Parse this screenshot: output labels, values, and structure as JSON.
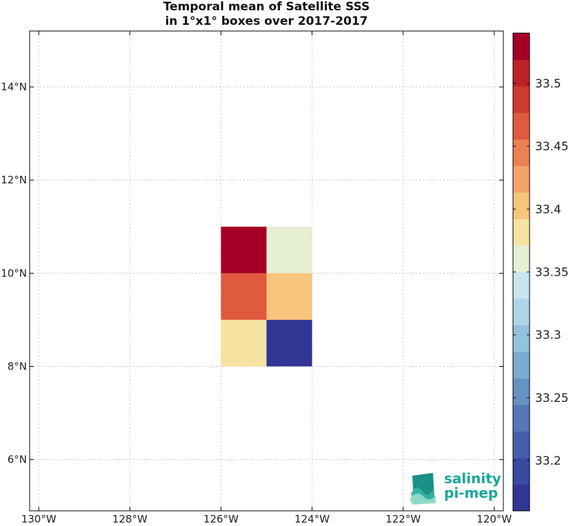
{
  "chart_data": {
    "type": "heatmap",
    "title_lines": [
      "Temporal mean of Satellite SSS",
      "in 1°x1° boxes over 2017-2017"
    ],
    "xlim": [
      -130.2,
      -119.8
    ],
    "ylim": [
      4.9,
      15.2
    ],
    "x_ticks": [
      {
        "value": -130,
        "label": "130°W"
      },
      {
        "value": -128,
        "label": "128°W"
      },
      {
        "value": -126,
        "label": "126°W"
      },
      {
        "value": -124,
        "label": "124°W"
      },
      {
        "value": -122,
        "label": "122°W"
      },
      {
        "value": -120,
        "label": "120°W"
      }
    ],
    "y_ticks": [
      {
        "value": 6,
        "label": "6°N"
      },
      {
        "value": 8,
        "label": "8°N"
      },
      {
        "value": 10,
        "label": "10°N"
      },
      {
        "value": 12,
        "label": "12°N"
      },
      {
        "value": 14,
        "label": "14°N"
      }
    ],
    "grid": true,
    "cells": [
      {
        "lon": [
          -126,
          -125
        ],
        "lat": [
          10,
          11
        ],
        "value": 33.53
      },
      {
        "lon": [
          -125,
          -124
        ],
        "lat": [
          10,
          11
        ],
        "value": 33.36
      },
      {
        "lon": [
          -126,
          -125
        ],
        "lat": [
          9,
          10
        ],
        "value": 33.47
      },
      {
        "lon": [
          -125,
          -124
        ],
        "lat": [
          9,
          10
        ],
        "value": 33.4
      },
      {
        "lon": [
          -126,
          -125
        ],
        "lat": [
          8,
          9
        ],
        "value": 33.38
      },
      {
        "lon": [
          -125,
          -124
        ],
        "lat": [
          8,
          9
        ],
        "value": 33.17
      }
    ],
    "colorbar": {
      "vmin": 33.16,
      "vmax": 33.54,
      "colors": [
        "#313695",
        "#394a9f",
        "#4560a9",
        "#5577b5",
        "#6691c3",
        "#7bacd1",
        "#92c2dd",
        "#acd5e7",
        "#c9e4ee",
        "#e6eed4",
        "#f7e3a1",
        "#f7c47c",
        "#f4a467",
        "#eb8152",
        "#df5a3f",
        "#d03b2f",
        "#bd2226",
        "#a50026"
      ],
      "ticks": [
        {
          "value": 33.2,
          "label": "33.2"
        },
        {
          "value": 33.25,
          "label": "33.25"
        },
        {
          "value": 33.3,
          "label": "33.3"
        },
        {
          "value": 33.35,
          "label": "33.35"
        },
        {
          "value": 33.4,
          "label": "33.4"
        },
        {
          "value": 33.45,
          "label": "33.45"
        },
        {
          "value": 33.5,
          "label": "33.5"
        }
      ]
    }
  },
  "logo": {
    "line1": "salinity",
    "line2": "pi-mep"
  }
}
